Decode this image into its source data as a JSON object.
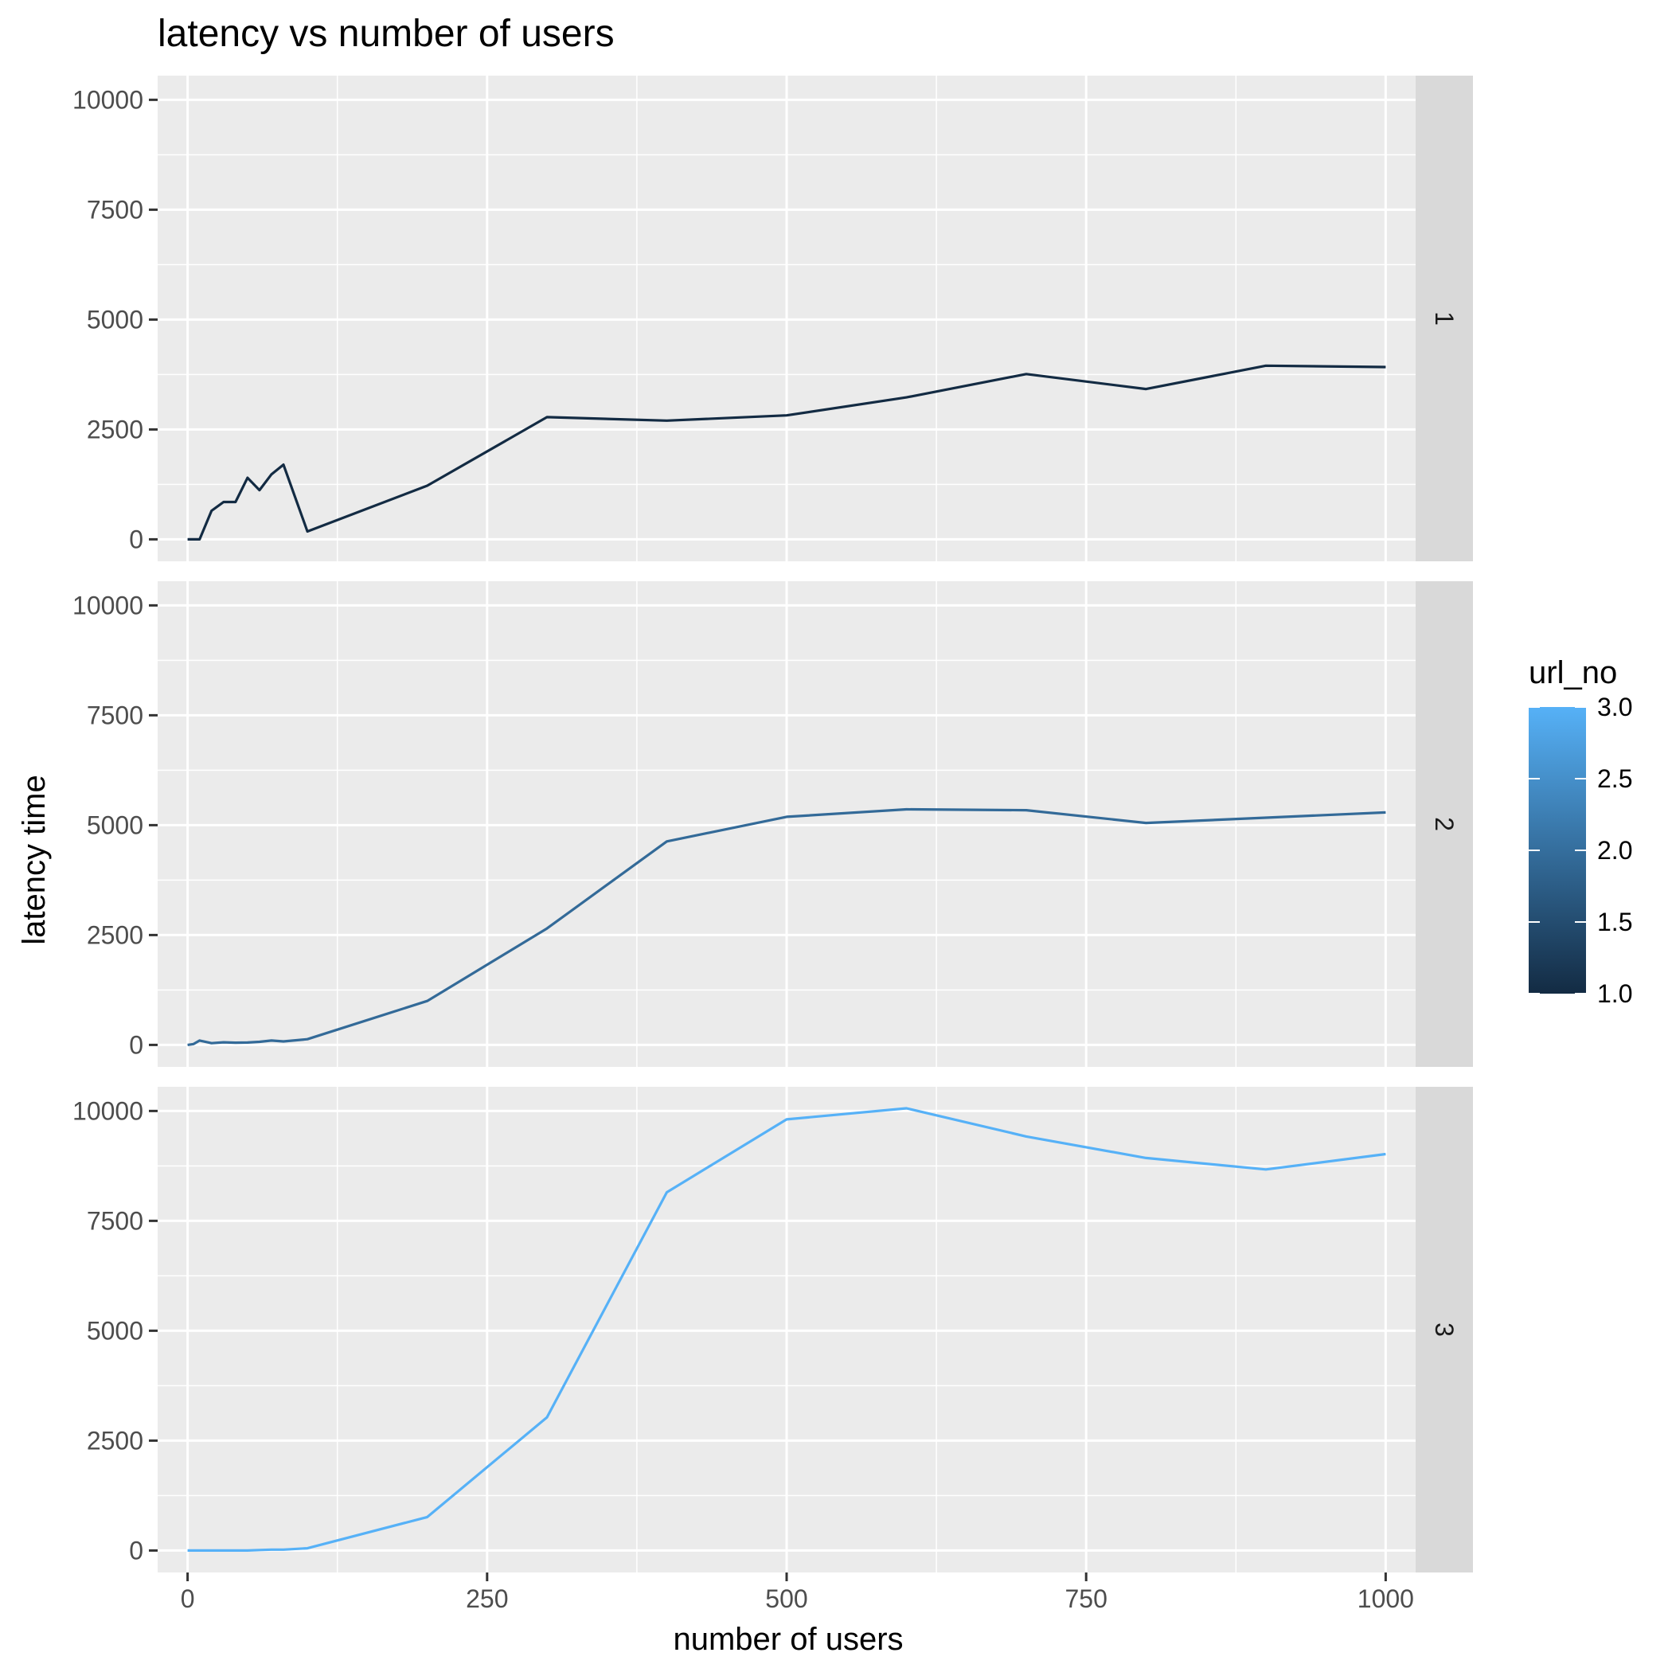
{
  "chart_data": {
    "type": "line",
    "title": "latency vs number of users",
    "xlabel": "number of users",
    "ylabel": "latency time",
    "xlim": [
      -25,
      1025
    ],
    "ylim": [
      -500,
      10550
    ],
    "x_ticks": [
      0,
      250,
      500,
      750,
      1000
    ],
    "x_tick_labels": [
      "0",
      "250",
      "500",
      "750",
      "1000"
    ],
    "y_ticks": [
      0,
      2500,
      5000,
      7500,
      10000
    ],
    "y_tick_labels": [
      "0",
      "2500",
      "5000",
      "7500",
      "10000"
    ],
    "grid": true,
    "facet_by": "url_no",
    "legend": {
      "title": "url_no",
      "position": "right",
      "type": "colorbar",
      "range": [
        1,
        3
      ],
      "ticks": [
        1.0,
        1.5,
        2.0,
        2.5,
        3.0
      ],
      "tick_labels": [
        "1.0",
        "1.5",
        "2.0",
        "2.5",
        "3.0"
      ],
      "low_color": "#132B43",
      "high_color": "#56B1F7"
    },
    "panels": [
      {
        "strip_label": "1",
        "color": "#132B43",
        "x": [
          0,
          10,
          20,
          30,
          40,
          50,
          60,
          70,
          80,
          100,
          200,
          300,
          400,
          500,
          600,
          700,
          800,
          900,
          1000
        ],
        "y": [
          0,
          0,
          650,
          850,
          850,
          1400,
          1120,
          1480,
          1700,
          180,
          1220,
          2780,
          2700,
          2820,
          3230,
          3760,
          3420,
          3950,
          3920
        ]
      },
      {
        "strip_label": "2",
        "color": "#336A98",
        "x": [
          0,
          5,
          10,
          20,
          30,
          40,
          50,
          60,
          70,
          80,
          100,
          200,
          300,
          400,
          500,
          600,
          700,
          800,
          900,
          1000
        ],
        "y": [
          0,
          20,
          100,
          40,
          60,
          50,
          55,
          70,
          100,
          80,
          130,
          1000,
          2650,
          4630,
          5190,
          5360,
          5340,
          5050,
          5170,
          5290
        ]
      },
      {
        "strip_label": "3",
        "color": "#56B1F7",
        "x": [
          0,
          10,
          20,
          30,
          40,
          50,
          60,
          70,
          80,
          100,
          200,
          300,
          400,
          500,
          600,
          700,
          800,
          900,
          1000
        ],
        "y": [
          0,
          0,
          0,
          0,
          0,
          0,
          10,
          20,
          20,
          50,
          760,
          3030,
          8150,
          9810,
          10060,
          9420,
          8930,
          8670,
          9020
        ]
      }
    ]
  }
}
